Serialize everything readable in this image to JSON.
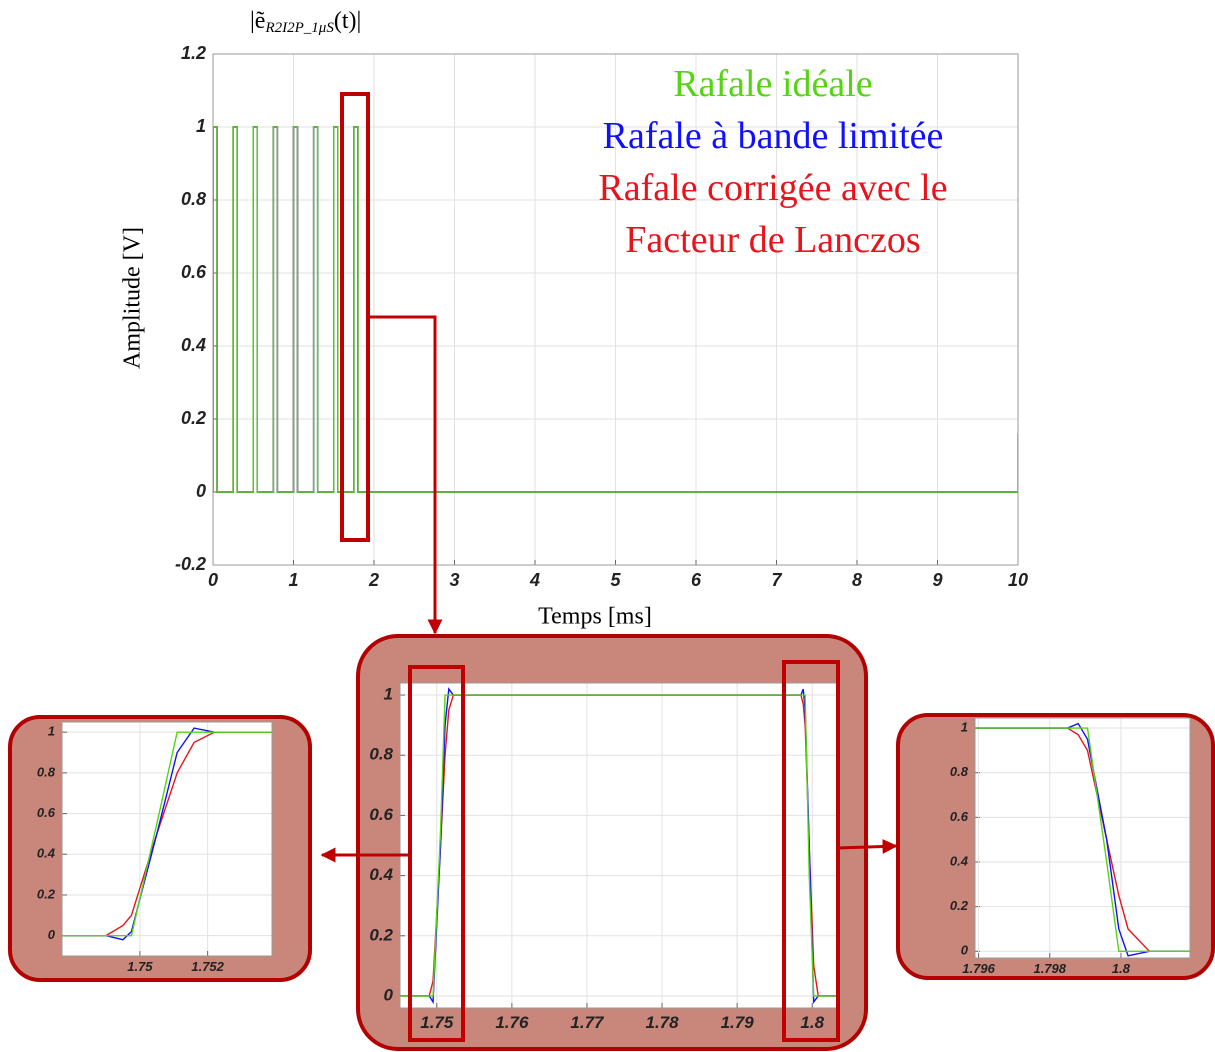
{
  "chart_data": [
    {
      "type": "line",
      "title": {
        "base": "|ẽ",
        "subscript": "R2I2P_1μS",
        "tail": "(t)|"
      },
      "xlabel": "Temps [ms]",
      "ylabel": "Amplitude [V]",
      "xlim": [
        0,
        10
      ],
      "ylim": [
        -0.2,
        1.2
      ],
      "xticks": [
        0,
        1,
        2,
        3,
        4,
        5,
        6,
        7,
        8,
        9,
        10
      ],
      "yticks": [
        -0.2,
        0,
        0.2,
        0.4,
        0.6,
        0.8,
        1,
        1.2
      ],
      "grid": true,
      "x": [
        0,
        0,
        0.05,
        0.05,
        0.25,
        0.25,
        0.3,
        0.3,
        0.5,
        0.5,
        0.55,
        0.55,
        0.75,
        0.75,
        0.8,
        0.8,
        1,
        1,
        1.05,
        1.05,
        1.25,
        1.25,
        1.3,
        1.3,
        1.5,
        1.5,
        1.55,
        1.55,
        1.75,
        1.75,
        1.8,
        1.8,
        10,
        10
      ],
      "series": [
        {
          "name": "Rafale idéale",
          "color": "#55d414",
          "values": [
            0,
            1,
            1,
            0,
            0,
            1,
            1,
            0,
            0,
            1,
            1,
            0,
            0,
            1,
            1,
            0,
            0,
            1,
            1,
            0,
            0,
            1,
            1,
            0,
            0,
            1,
            1,
            0,
            0,
            1,
            1,
            0,
            0,
            0
          ]
        },
        {
          "name": "Rafale à bande limitée",
          "color": "#1010ff",
          "values": [
            0,
            1,
            1,
            0,
            0,
            1,
            1,
            0,
            0,
            1,
            1,
            0,
            0,
            1,
            1,
            0,
            0,
            1,
            1,
            0,
            0,
            1,
            1,
            0,
            0,
            1,
            1,
            0,
            0,
            1,
            1,
            0,
            0,
            0
          ]
        },
        {
          "name": "Rafale corrigée avec le Facteur de Lanczos",
          "color": "#e8141b",
          "values": [
            0,
            1,
            1,
            0,
            0,
            1,
            1,
            0,
            0,
            1,
            1,
            0,
            0,
            1,
            1,
            0,
            0,
            1,
            1,
            0,
            0,
            1,
            1,
            0,
            0,
            1,
            1,
            0,
            0,
            1,
            1,
            0,
            0,
            0.16
          ]
        }
      ]
    },
    {
      "type": "line",
      "xlim": [
        1.7477,
        1.7539
      ],
      "ylim": [
        -0.1,
        1.05
      ],
      "xticks": [
        1.75,
        1.752
      ],
      "yticks": [
        0,
        0.2,
        0.4,
        0.6,
        0.8,
        1
      ],
      "grid": true,
      "x": [
        1.7477,
        1.749,
        1.7495,
        1.74975,
        1.7505,
        1.7511,
        1.7516,
        1.7522,
        1.7539
      ],
      "series": [
        {
          "color": "#e8141b",
          "values": [
            0,
            0,
            0.05,
            0.1,
            0.5,
            0.8,
            0.95,
            1,
            1
          ]
        },
        {
          "color": "#1010ff",
          "values": [
            0,
            0,
            -0.02,
            0.02,
            0.5,
            0.9,
            1.02,
            1,
            1
          ]
        },
        {
          "color": "#55d414",
          "values": [
            0,
            0,
            0,
            0,
            0.55,
            1,
            1,
            1,
            1
          ]
        }
      ]
    },
    {
      "type": "line",
      "xlim": [
        1.7451,
        1.8037
      ],
      "ylim": [
        -0.04,
        1.04
      ],
      "xticks": [
        1.75,
        1.76,
        1.77,
        1.78,
        1.79,
        1.8
      ],
      "yticks": [
        0,
        0.2,
        0.4,
        0.6,
        0.8,
        1
      ],
      "grid": true,
      "x": [
        1.7451,
        1.749,
        1.7495,
        1.7505,
        1.7511,
        1.7516,
        1.7522,
        1.7985,
        1.7988,
        1.79906,
        1.7996,
        1.8002,
        1.8008,
        1.8037
      ],
      "series": [
        {
          "color": "#e8141b",
          "values": [
            0,
            0,
            0.05,
            0.5,
            0.8,
            0.95,
            1,
            1,
            0.97,
            0.9,
            0.5,
            0.1,
            0,
            0
          ]
        },
        {
          "color": "#1010ff",
          "values": [
            0,
            0,
            -0.02,
            0.5,
            0.9,
            1.02,
            1,
            1,
            1.02,
            0.95,
            0.5,
            -0.02,
            0,
            0
          ]
        },
        {
          "color": "#55d414",
          "values": [
            0,
            0,
            0,
            0.55,
            1,
            1,
            1,
            1,
            1,
            1,
            0.4,
            0,
            0,
            0
          ]
        }
      ]
    },
    {
      "type": "line",
      "xlim": [
        1.7959,
        1.80194
      ],
      "ylim": [
        -0.03,
        1.045
      ],
      "xticks": [
        1.796,
        1.798,
        1.8
      ],
      "yticks": [
        0,
        0.2,
        0.4,
        0.6,
        0.8,
        1
      ],
      "grid": true,
      "x": [
        1.7959,
        1.7985,
        1.7988,
        1.79906,
        1.7996,
        1.79994,
        1.8002,
        1.8008,
        1.80194
      ],
      "series": [
        {
          "color": "#e8141b",
          "values": [
            1,
            1,
            0.97,
            0.9,
            0.5,
            0.25,
            0.1,
            0,
            0
          ]
        },
        {
          "color": "#1010ff",
          "values": [
            1,
            1,
            1.02,
            0.95,
            0.5,
            0.1,
            -0.02,
            0,
            0
          ]
        },
        {
          "color": "#55d414",
          "values": [
            1,
            1,
            1,
            1,
            0.4,
            0,
            0,
            0,
            0
          ]
        }
      ]
    }
  ]
}
